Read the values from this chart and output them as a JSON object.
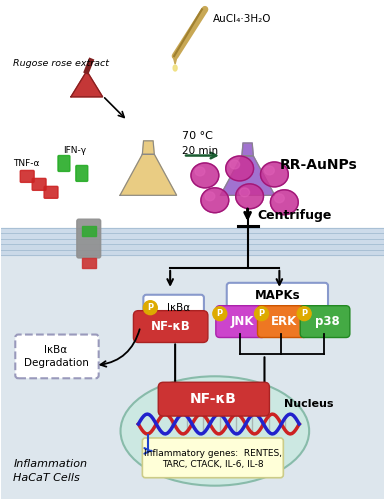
{
  "bg_top": "#ffffff",
  "bg_bottom": "#dde6ed",
  "rr_aunps_label": "RR-AuNPs",
  "centrifuge_label": "Centrifuge",
  "temp_label": "70 °C",
  "time_label": "20 min",
  "aucl_label": "AuCl₄·3H₂O",
  "rugose_label": "Rugose rose extract",
  "inflammation_label": "Inflammation\nHaCaT Cells",
  "nucleus_label": "Nucleus",
  "nfkb_nucleus_label": "NF-κB",
  "mapks_label": "MAPKs",
  "ikba_deg_label": "IκBα\nDegradation",
  "ikba_label": "IκBα",
  "genes_label": "Inflammatory genes:  RENTES,\nTARC, CTACK, IL-6, IL-8",
  "tnfa_label": "TNF-α",
  "ifng_label": "IFN-γ",
  "nfkb_complex_label": "NF-κB",
  "jnk_label": "JNK",
  "erk_label": "ERK",
  "p38_label": "p38"
}
